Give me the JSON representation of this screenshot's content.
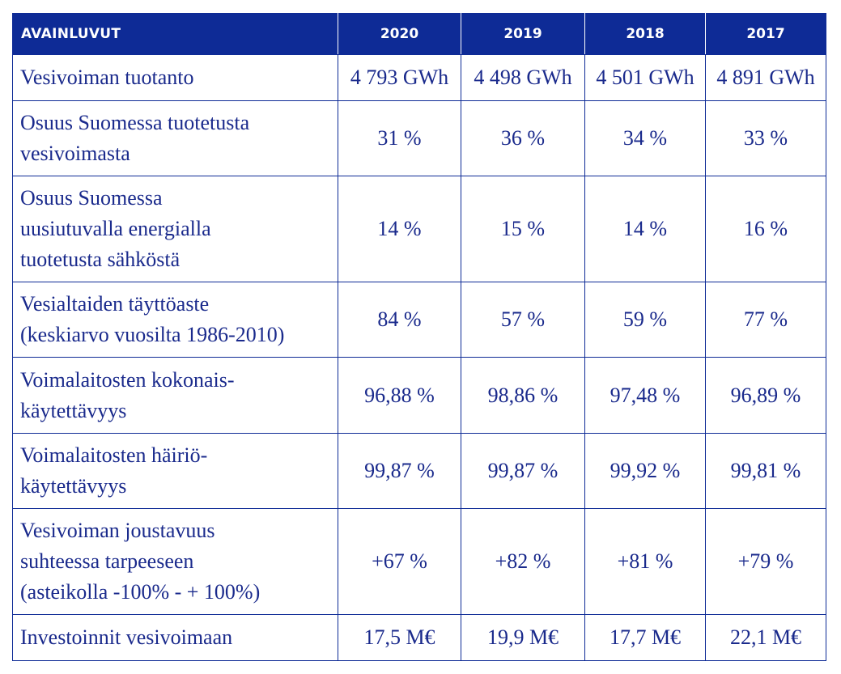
{
  "table": {
    "header": {
      "label": "AVAINLUVUT",
      "years": [
        "2020",
        "2019",
        "2018",
        "2017"
      ]
    },
    "rows": [
      {
        "label_lines": [
          "Vesivoiman tuotanto"
        ],
        "values": [
          "4 793 GWh",
          "4 498 GWh",
          "4 501 GWh",
          "4 891 GWh"
        ]
      },
      {
        "label_lines": [
          "Osuus Suomessa tuotetusta",
          "vesivoimasta"
        ],
        "values": [
          "31 %",
          "36 %",
          "34 %",
          "33 %"
        ]
      },
      {
        "label_lines": [
          "Osuus Suomessa",
          "uusiutuvalla energialla",
          "tuotetusta sähköstä"
        ],
        "values": [
          "14 %",
          "15 %",
          "14 %",
          "16 %"
        ]
      },
      {
        "label_lines": [
          "Vesialtaiden täyttöaste",
          "(keskiarvo vuosilta 1986-2010)"
        ],
        "values": [
          "84 %",
          "57 %",
          "59 %",
          "77 %"
        ]
      },
      {
        "label_lines": [
          "Voimalaitosten kokonais-",
          "käytettävyys"
        ],
        "values": [
          "96,88 %",
          "98,86 %",
          "97,48 %",
          "96,89 %"
        ]
      },
      {
        "label_lines": [
          "Voimalaitosten häiriö-",
          "käytettävyys"
        ],
        "values": [
          "99,87 %",
          "99,87 %",
          "99,92 %",
          "99,81 %"
        ]
      },
      {
        "label_lines": [
          "Vesivoiman joustavuus",
          "suhteessa tarpeeseen",
          "(asteikolla -100% - + 100%)"
        ],
        "values": [
          "+67 %",
          "+82 %",
          "+81 %",
          "+79 %"
        ]
      },
      {
        "label_lines": [
          "Investoinnit vesivoimaan"
        ],
        "values": [
          "17,5 M€",
          "19,9 M€",
          "17,7 M€",
          "22,1 M€"
        ]
      }
    ]
  },
  "colors": {
    "header_bg": "#0e2b96",
    "text": "#1a2a8c",
    "border": "#0e2b96"
  }
}
